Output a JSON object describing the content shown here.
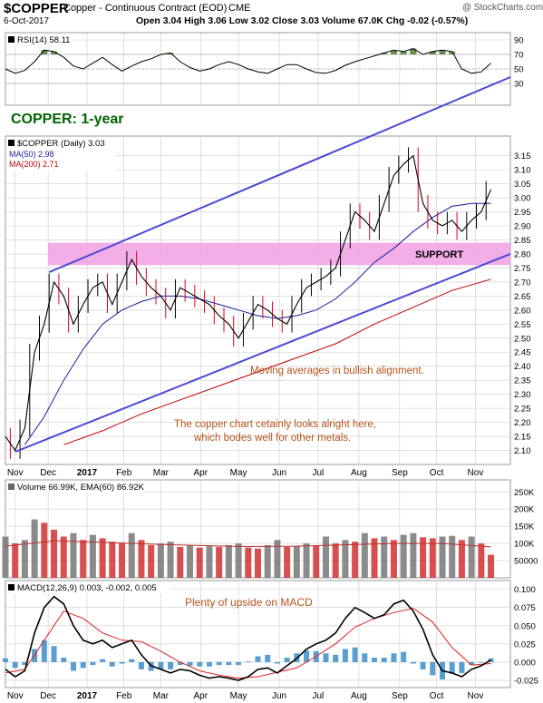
{
  "header": {
    "symbol": "$COPPER",
    "name": "Copper - Continuous Contract (EOD)",
    "exchange": "CME",
    "brand": "@ StockCharts.com",
    "date": "6-Oct-2017",
    "quote": "Open 3.04  High 3.06  Low 3.02  Close 3.03  Volume 67.0K  Chg -0.02 (-0.57%)"
  },
  "colors": {
    "frame": "#d9d9d9",
    "grid": "#cccccc",
    "price": "#000000",
    "candle_down": "#e0001b",
    "ma50": "#1c1c9c",
    "ma200": "#c00000",
    "trend": "#4a4ad4",
    "support_band": "#f2a5e6",
    "title_green": "#006400",
    "annotation": "#b3541b",
    "volume_up": "#777777",
    "volume_down": "#d03030",
    "macd_hist": "#2f86c4",
    "rsi_fill": "#4e7a2e"
  },
  "chart_data": [
    {
      "type": "line",
      "panel": "rsi",
      "label": "RSI(14) 58.11",
      "ylim": [
        0,
        100
      ],
      "y_ticks": [
        30,
        50,
        70,
        90
      ],
      "reference_lines": [
        30,
        50,
        70
      ],
      "series": [
        {
          "name": "RSI(14)",
          "x": [
            0,
            1,
            2,
            3,
            4,
            5,
            6,
            7,
            8,
            9,
            10,
            11,
            12,
            13,
            14,
            15,
            16,
            17,
            18,
            19,
            20,
            21,
            22,
            23,
            24,
            25,
            26,
            27,
            28,
            29,
            30,
            31,
            32,
            33,
            34,
            35,
            36,
            37,
            38,
            39,
            40,
            41,
            42,
            43,
            44,
            45,
            46,
            47,
            48,
            49,
            50
          ],
          "values": [
            50,
            44,
            48,
            60,
            76,
            74,
            66,
            54,
            50,
            58,
            66,
            56,
            47,
            54,
            60,
            64,
            70,
            72,
            60,
            52,
            47,
            50,
            56,
            60,
            56,
            50,
            46,
            44,
            50,
            56,
            56,
            50,
            45,
            44,
            48,
            55,
            60,
            64,
            68,
            72,
            76,
            74,
            78,
            70,
            74,
            76,
            74,
            50,
            44,
            46,
            58
          ]
        }
      ]
    },
    {
      "type": "line",
      "panel": "price",
      "title": "COPPER: 1-year",
      "label": "$COPPER (Daily) 3.03",
      "ylim": [
        2.05,
        3.22
      ],
      "y_ticks": [
        2.1,
        2.15,
        2.2,
        2.25,
        2.3,
        2.35,
        2.4,
        2.45,
        2.5,
        2.55,
        2.6,
        2.65,
        2.7,
        2.75,
        2.8,
        2.85,
        2.9,
        2.95,
        3.0,
        3.05,
        3.1,
        3.15
      ],
      "x_ticks": [
        "Nov",
        "Dec",
        "2017",
        "Feb",
        "Mar",
        "Apr",
        "May",
        "Jun",
        "Jul",
        "Aug",
        "Sep",
        "Oct",
        "Nov"
      ],
      "x_tick_positions": [
        1,
        4.4,
        8.4,
        12.2,
        16,
        20.1,
        24,
        28.2,
        32.2,
        36.4,
        40.6,
        44.4,
        48.4
      ],
      "series": [
        {
          "name": "$COPPER",
          "x": [
            0,
            1,
            2,
            3,
            4,
            5,
            6,
            7,
            8,
            9,
            10,
            11,
            12,
            13,
            14,
            15,
            16,
            17,
            18,
            19,
            20,
            21,
            22,
            23,
            24,
            25,
            26,
            27,
            28,
            29,
            30,
            31,
            32,
            33,
            34,
            35,
            36,
            37,
            38,
            39,
            40,
            41,
            42,
            43,
            44,
            45,
            46,
            47,
            48,
            49,
            50
          ],
          "values": [
            2.15,
            2.1,
            2.18,
            2.45,
            2.55,
            2.7,
            2.65,
            2.55,
            2.62,
            2.68,
            2.7,
            2.62,
            2.7,
            2.78,
            2.72,
            2.68,
            2.65,
            2.6,
            2.68,
            2.66,
            2.64,
            2.62,
            2.58,
            2.55,
            2.5,
            2.56,
            2.62,
            2.6,
            2.57,
            2.55,
            2.62,
            2.68,
            2.7,
            2.72,
            2.75,
            2.85,
            2.95,
            2.92,
            2.88,
            2.98,
            3.08,
            3.12,
            3.15,
            2.98,
            2.92,
            2.9,
            2.92,
            2.88,
            2.92,
            2.95,
            3.03
          ]
        },
        {
          "name": "MA(50) 2.98",
          "x": [
            2,
            4,
            6,
            8,
            10,
            12,
            14,
            16,
            18,
            20,
            22,
            24,
            26,
            28,
            30,
            32,
            34,
            36,
            38,
            40,
            42,
            44,
            46,
            48,
            50
          ],
          "values": [
            2.12,
            2.22,
            2.35,
            2.46,
            2.55,
            2.6,
            2.63,
            2.65,
            2.65,
            2.64,
            2.62,
            2.6,
            2.58,
            2.57,
            2.58,
            2.6,
            2.64,
            2.7,
            2.77,
            2.82,
            2.88,
            2.93,
            2.97,
            2.98,
            2.98
          ]
        },
        {
          "name": "MA(200) 2.71",
          "x": [
            6,
            10,
            14,
            18,
            22,
            26,
            30,
            34,
            38,
            42,
            46,
            50
          ],
          "values": [
            2.12,
            2.17,
            2.23,
            2.28,
            2.33,
            2.38,
            2.43,
            2.48,
            2.55,
            2.61,
            2.67,
            2.71
          ]
        },
        {
          "name": "Upper trendline",
          "x": [
            4.5,
            52
          ],
          "values": [
            2.735,
            3.43
          ]
        },
        {
          "name": "Lower trendline",
          "x": [
            1,
            52
          ],
          "values": [
            2.095,
            2.8
          ]
        }
      ],
      "bands": [
        {
          "label": "SUPPORT",
          "y": [
            2.76,
            2.84
          ]
        }
      ],
      "annotations": [
        "Moving averages in bullish alignment.",
        "The copper chart cetainly looks alright here,",
        "which bodes well for other metals."
      ]
    },
    {
      "type": "bar",
      "panel": "volume",
      "label": "Volume 66.99K, EMA(60) 86.92K",
      "ylim": [
        0,
        285000
      ],
      "y_ticks": [
        50000,
        100000,
        150000,
        200000,
        250000
      ],
      "y_tick_labels": [
        "50000",
        "100K",
        "150K",
        "200K",
        "250K"
      ],
      "series": [
        {
          "name": "Volume",
          "values": [
            120000,
            100000,
            110000,
            170000,
            160000,
            140000,
            120000,
            130000,
            110000,
            125000,
            115000,
            105000,
            100000,
            130000,
            110000,
            95000,
            100000,
            105000,
            90000,
            95000,
            88000,
            92000,
            90000,
            95000,
            100000,
            88000,
            85000,
            95000,
            110000,
            90000,
            92000,
            100000,
            95000,
            120000,
            100000,
            110000,
            105000,
            130000,
            115000,
            120000,
            110000,
            125000,
            130000,
            118000,
            115000,
            120000,
            122000,
            110000,
            120000,
            100000,
            67000
          ]
        },
        {
          "name": "EMA(60)",
          "x": [
            0,
            5,
            10,
            15,
            20,
            25,
            30,
            35,
            40,
            45,
            50
          ],
          "values": [
            92000,
            108000,
            104000,
            98000,
            94000,
            91000,
            92000,
            96000,
            100000,
            100000,
            90000
          ]
        }
      ]
    },
    {
      "type": "line",
      "panel": "macd",
      "label": "MACD(12,26,9) 0.003, -0.002, 0.005",
      "ylim": [
        -0.035,
        0.112
      ],
      "y_ticks": [
        -0.025,
        0.0,
        0.025,
        0.05,
        0.075,
        0.1
      ],
      "y_tick_labels": [
        "-0.025",
        "0.000",
        "0.025",
        "0.050",
        "0.075",
        "0.100"
      ],
      "annotation": "Plenty of upside on MACD",
      "series": [
        {
          "name": "MACD",
          "x": [
            0,
            1,
            2,
            3,
            4,
            5,
            6,
            7,
            8,
            9,
            10,
            11,
            12,
            13,
            14,
            15,
            16,
            17,
            18,
            19,
            20,
            21,
            22,
            23,
            24,
            25,
            26,
            27,
            28,
            29,
            30,
            31,
            32,
            33,
            34,
            35,
            36,
            37,
            38,
            39,
            40,
            41,
            42,
            43,
            44,
            45,
            46,
            47,
            48,
            49,
            50
          ],
          "values": [
            -0.01,
            -0.02,
            -0.012,
            0.04,
            0.075,
            0.09,
            0.08,
            0.05,
            0.03,
            0.025,
            0.03,
            0.02,
            0.025,
            0.03,
            0.01,
            -0.005,
            -0.01,
            -0.015,
            -0.01,
            -0.012,
            -0.018,
            -0.022,
            -0.02,
            -0.022,
            -0.025,
            -0.02,
            -0.01,
            -0.008,
            -0.015,
            -0.005,
            0.005,
            0.018,
            0.025,
            0.03,
            0.04,
            0.06,
            0.075,
            0.068,
            0.06,
            0.065,
            0.08,
            0.085,
            0.07,
            0.045,
            0.01,
            -0.012,
            -0.015,
            -0.02,
            -0.01,
            -0.005,
            0.003
          ]
        },
        {
          "name": "Signal",
          "x": [
            0,
            2,
            4,
            6,
            8,
            10,
            12,
            14,
            16,
            18,
            20,
            22,
            24,
            26,
            28,
            30,
            32,
            34,
            36,
            38,
            40,
            42,
            44,
            46,
            48,
            50
          ],
          "values": [
            -0.015,
            -0.01,
            0.03,
            0.07,
            0.06,
            0.04,
            0.03,
            0.028,
            0.015,
            0.0,
            -0.012,
            -0.018,
            -0.022,
            -0.02,
            -0.014,
            -0.008,
            0.008,
            0.025,
            0.048,
            0.06,
            0.068,
            0.074,
            0.055,
            0.02,
            -0.004,
            -0.002
          ]
        },
        {
          "name": "Histogram",
          "x": [
            0,
            1,
            2,
            3,
            4,
            5,
            6,
            7,
            8,
            9,
            10,
            11,
            12,
            13,
            14,
            15,
            16,
            17,
            18,
            19,
            20,
            21,
            22,
            23,
            24,
            25,
            26,
            27,
            28,
            29,
            30,
            31,
            32,
            33,
            34,
            35,
            36,
            37,
            38,
            39,
            40,
            41,
            42,
            43,
            44,
            45,
            46,
            47,
            48,
            49,
            50
          ],
          "values": [
            0.005,
            -0.008,
            -0.004,
            0.018,
            0.03,
            0.022,
            0.006,
            -0.012,
            -0.008,
            -0.004,
            0.004,
            -0.006,
            -0.002,
            0.004,
            -0.01,
            -0.012,
            -0.01,
            -0.01,
            -0.004,
            -0.005,
            -0.006,
            -0.006,
            -0.004,
            -0.004,
            -0.004,
            0.001,
            0.008,
            0.01,
            -0.002,
            0.006,
            0.012,
            0.016,
            0.015,
            0.012,
            0.01,
            0.018,
            0.02,
            0.012,
            0.006,
            0.006,
            0.012,
            0.014,
            -0.002,
            -0.01,
            -0.018,
            -0.024,
            -0.016,
            -0.015,
            -0.004,
            -0.001,
            0.005
          ]
        }
      ]
    }
  ]
}
